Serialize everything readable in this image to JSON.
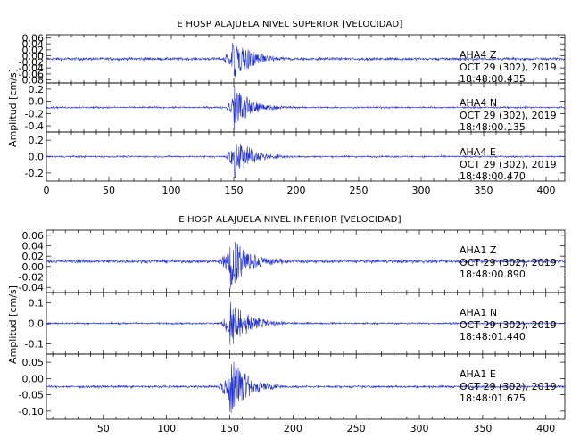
{
  "chart_data": [
    {
      "type": "line",
      "title": "E HOSP ALAJUELA NIVEL SUPERIOR [VELOCIDAD]",
      "ylabel": "Amplitud [cm/s]",
      "xlim": [
        0,
        415
      ],
      "xticks": [
        "0",
        "50",
        "100",
        "150",
        "200",
        "250",
        "300",
        "350",
        "400"
      ],
      "series": [
        {
          "station": "AHA4",
          "component": "Z",
          "date": "OCT 29 (302), 2019",
          "time": "18:48:00.435",
          "ylim": [
            -0.08,
            0.08
          ],
          "yticks": [
            "0.06",
            "0.04",
            "0.02",
            "0.00",
            "-0.02",
            "-0.04",
            "-0.06",
            "0.08"
          ],
          "noise": 0.004,
          "onset": 140,
          "peak_time": 149,
          "peak": 0.075,
          "decay": 14
        },
        {
          "station": "AHA4",
          "component": "N",
          "date": "OCT 29 (302), 2019",
          "time": "18:48:00.135",
          "ylim": [
            -0.4,
            0.4
          ],
          "yticks": [
            "0.2",
            "0.0",
            "-0.2",
            "-0.4"
          ],
          "noise": 0.012,
          "onset": 143,
          "peak_time": 150,
          "peak": 0.38,
          "decay": 13
        },
        {
          "station": "AHA4",
          "component": "E",
          "date": "OCT 29 (302), 2019",
          "time": "18:48:00.470",
          "ylim": [
            -0.33,
            0.33
          ],
          "yticks": [
            "0.2",
            "0.0",
            "-0.2"
          ],
          "noise": 0.01,
          "onset": 143,
          "peak_time": 150,
          "peak": 0.32,
          "decay": 13
        }
      ]
    },
    {
      "type": "line",
      "title": "E HOSP ALAJUELA NIVEL INFERIOR [VELOCIDAD]",
      "ylabel": "Amplitud [cm/s]",
      "xlim": [
        5,
        415
      ],
      "xticks": [
        "50",
        "100",
        "150",
        "200",
        "250",
        "300",
        "350",
        "400"
      ],
      "series": [
        {
          "station": "AHA1",
          "component": "Z",
          "date": "OCT 29 (302), 2019",
          "time": "18:48:00.890",
          "ylim": [
            -0.065,
            0.065
          ],
          "yticks": [
            "0.06",
            "0.04",
            "0.02",
            "0.00",
            "-0.02",
            "-0.04"
          ],
          "noise": 0.003,
          "onset": 140,
          "peak_time": 150,
          "peak": 0.06,
          "decay": 14
        },
        {
          "station": "AHA1",
          "component": "N",
          "date": "OCT 29 (302), 2019",
          "time": "18:48:01.440",
          "ylim": [
            -0.16,
            0.16
          ],
          "yticks": [
            "0.1",
            "0.0",
            "-0.1"
          ],
          "noise": 0.004,
          "onset": 143,
          "peak_time": 150,
          "peak": 0.15,
          "decay": 13
        },
        {
          "station": "AHA1",
          "component": "E",
          "date": "OCT 29 (302), 2019",
          "time": "18:48:01.675",
          "ylim": [
            -0.1,
            0.1
          ],
          "yticks": [
            "0.05",
            "0.00",
            "-0.05",
            "-0.10"
          ],
          "noise": 0.003,
          "onset": 140,
          "peak_time": 150,
          "peak": 0.1,
          "decay": 13
        }
      ]
    }
  ]
}
